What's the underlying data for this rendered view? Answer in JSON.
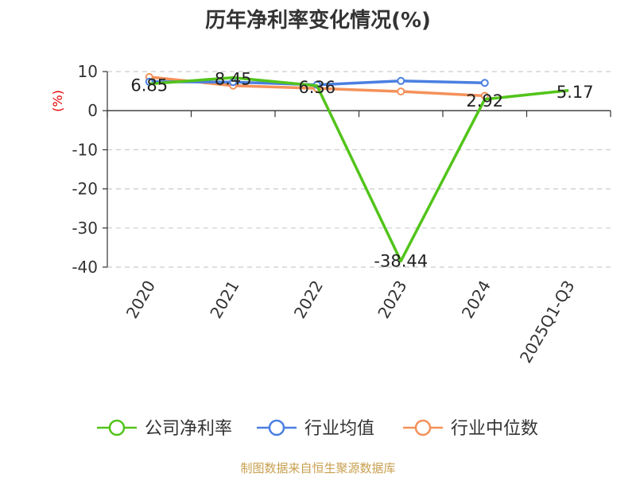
{
  "chart_data": {
    "type": "line",
    "title": "历年净利率变化情况(%)",
    "ylabel": "(%)",
    "xlabel": "",
    "categories": [
      "2020",
      "2021",
      "2022",
      "2023",
      "2024",
      "2025Q1-Q3"
    ],
    "ylim": [
      -40,
      10
    ],
    "yticks": [
      10,
      0,
      -10,
      -20,
      -30,
      -40
    ],
    "grid": true,
    "legend_position": "bottom",
    "series": [
      {
        "name": "公司净利率",
        "color": "#52c41a",
        "values": [
          6.85,
          8.45,
          6.36,
          -38.44,
          2.92,
          5.17
        ],
        "labels": [
          "6.85",
          "8.45",
          "6.36",
          "-38.44",
          "2.92",
          "5.17"
        ]
      },
      {
        "name": "行业均值",
        "color": "#4a7fe0",
        "values": [
          7.4,
          7.3,
          6.6,
          7.6,
          7.1,
          null
        ]
      },
      {
        "name": "行业中位数",
        "color": "#f4915a",
        "values": [
          8.6,
          6.4,
          5.7,
          4.9,
          3.8,
          null
        ]
      }
    ]
  },
  "footer": {
    "source": "制图数据来自恒生聚源数据库"
  }
}
